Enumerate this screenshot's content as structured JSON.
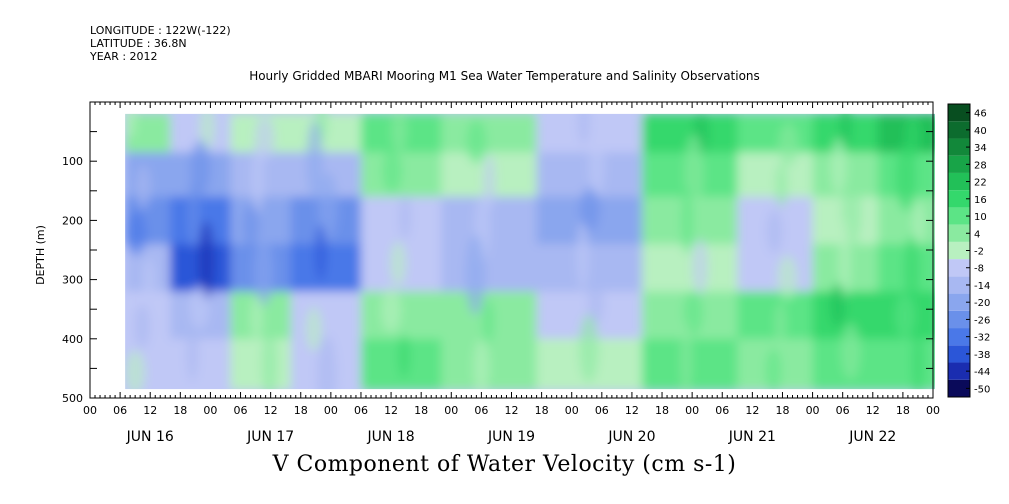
{
  "header": {
    "longitude": "LONGITUDE : 122W(-122)",
    "latitude": "LATITUDE : 36.8N",
    "year": "YEAR : 2012"
  },
  "chart_data": {
    "type": "heatmap",
    "title": "Hourly Gridded MBARI Mooring M1 Sea Water Temperature and Salinity Observations",
    "xlabel": "V Component of Water Velocity (cm s-1)",
    "ylabel": "DEPTH (m)",
    "x_range_hours": [
      0,
      168
    ],
    "y_range": [
      500,
      0
    ],
    "y_ticks": [
      100,
      200,
      300,
      400,
      500
    ],
    "x_hour_tick_labels": [
      "00",
      "06",
      "12",
      "18",
      "00",
      "06",
      "12",
      "18",
      "00",
      "06",
      "12",
      "18",
      "00",
      "06",
      "12",
      "18",
      "00",
      "06",
      "12",
      "18",
      "00",
      "06",
      "12",
      "18",
      "00",
      "06",
      "12",
      "18",
      "00"
    ],
    "day_labels": [
      "JUN 16",
      "JUN 17",
      "JUN 18",
      "JUN 19",
      "JUN 20",
      "JUN 21",
      "JUN 22"
    ],
    "data_extent": {
      "hour_start": 7,
      "hour_end": 169,
      "depth_top": 20,
      "depth_bottom": 485
    },
    "colorbar": {
      "labels": [
        "46",
        "40",
        "34",
        "28",
        "22",
        "16",
        "10",
        "4",
        "-2",
        "-8",
        "-14",
        "-20",
        "-26",
        "-32",
        "-38",
        "-44",
        "-50"
      ],
      "min": -50,
      "max": 50,
      "colors": [
        "#0a0a5a",
        "#1a2db0",
        "#2b56d8",
        "#4a78e8",
        "#6a90ea",
        "#8aa6ee",
        "#a8b8f2",
        "#c0c8f6",
        "#b8f0c0",
        "#8aeaa0",
        "#5ce486",
        "#34d86c",
        "#22c058",
        "#18a448",
        "#12883a",
        "#0c6c2e",
        "#084e20"
      ]
    },
    "series": [
      {
        "depth_bands_m": [
          50,
          120,
          200,
          280,
          360,
          440
        ],
        "values": [
          [
            6,
            -18,
            -22,
            -14,
            -8,
            -4
          ],
          [
            -4,
            -16,
            -28,
            -34,
            -10,
            -6
          ],
          [
            2,
            -10,
            -18,
            -24,
            4,
            -2
          ],
          [
            -2,
            -12,
            -26,
            -30,
            -8,
            -4
          ],
          [
            14,
            6,
            -4,
            -6,
            8,
            10
          ],
          [
            8,
            2,
            -10,
            -12,
            6,
            4
          ],
          [
            -6,
            -12,
            -18,
            -14,
            -8,
            -2
          ],
          [
            20,
            10,
            4,
            0,
            6,
            12
          ],
          [
            10,
            2,
            -8,
            -6,
            14,
            8
          ],
          [
            16,
            8,
            2,
            6,
            16,
            10
          ],
          [
            22,
            12,
            6,
            10,
            18,
            14
          ]
        ],
        "hours": [
          10,
          22,
          34,
          46,
          62,
          78,
          100,
          120,
          138,
          150,
          164
        ]
      }
    ]
  }
}
